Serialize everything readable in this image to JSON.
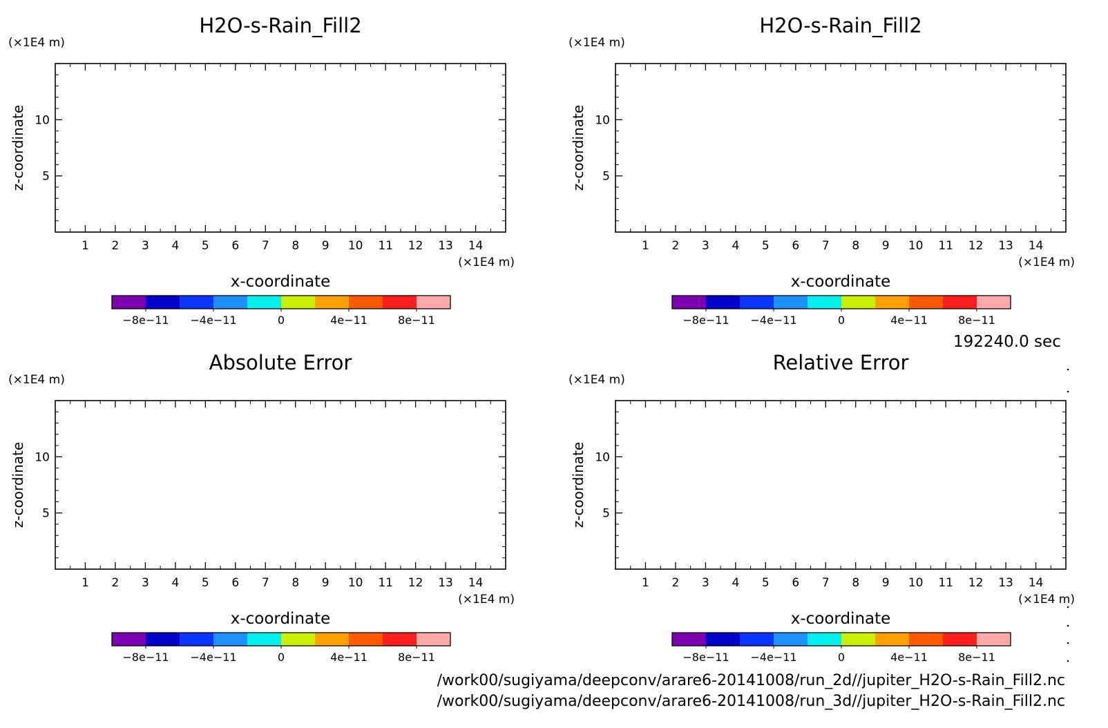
{
  "chart_data": [
    {
      "type": "heatmap",
      "title": "H2O-s-Rain_Fill2",
      "xlabel": "x-coordinate",
      "ylabel": "z-coordinate",
      "x_unit": "(×1E4 m)",
      "y_unit": "(×1E4 m)",
      "xlim": [
        0,
        15
      ],
      "ylim": [
        0,
        15
      ],
      "x_ticks": [
        1,
        2,
        3,
        4,
        5,
        6,
        7,
        8,
        9,
        10,
        11,
        12,
        13,
        14
      ],
      "y_ticks": [
        5,
        10
      ],
      "values": [],
      "colorbar": {
        "vmin": -1e-10,
        "vmax": 1e-10,
        "colors": [
          "#7a00b0",
          "#0000c8",
          "#0a37ff",
          "#1e90ff",
          "#00f0f0",
          "#c8f000",
          "#ffa000",
          "#ff5a00",
          "#ff1e1e",
          "#ffaaaa"
        ],
        "tick_values": [
          -8e-11,
          -4e-11,
          0,
          4e-11,
          8e-11
        ],
        "tick_labels": [
          "−8e−11",
          "−4e−11",
          "0",
          "4e−11",
          "8e−11"
        ]
      }
    },
    {
      "type": "heatmap",
      "title": "H2O-s-Rain_Fill2",
      "xlabel": "x-coordinate",
      "ylabel": "z-coordinate",
      "x_unit": "(×1E4 m)",
      "y_unit": "(×1E4 m)",
      "xlim": [
        0,
        15
      ],
      "ylim": [
        0,
        15
      ],
      "x_ticks": [
        1,
        2,
        3,
        4,
        5,
        6,
        7,
        8,
        9,
        10,
        11,
        12,
        13,
        14
      ],
      "y_ticks": [
        5,
        10
      ],
      "values": [],
      "colorbar": {
        "vmin": -1e-10,
        "vmax": 1e-10,
        "colors": [
          "#7a00b0",
          "#0000c8",
          "#0a37ff",
          "#1e90ff",
          "#00f0f0",
          "#c8f000",
          "#ffa000",
          "#ff5a00",
          "#ff1e1e",
          "#ffaaaa"
        ],
        "tick_values": [
          -8e-11,
          -4e-11,
          0,
          4e-11,
          8e-11
        ],
        "tick_labels": [
          "−8e−11",
          "−4e−11",
          "0",
          "4e−11",
          "8e−11"
        ]
      }
    },
    {
      "type": "heatmap",
      "title": "Absolute Error",
      "xlabel": "x-coordinate",
      "ylabel": "z-coordinate",
      "x_unit": "(×1E4 m)",
      "y_unit": "(×1E4 m)",
      "xlim": [
        0,
        15
      ],
      "ylim": [
        0,
        15
      ],
      "x_ticks": [
        1,
        2,
        3,
        4,
        5,
        6,
        7,
        8,
        9,
        10,
        11,
        12,
        13,
        14
      ],
      "y_ticks": [
        5,
        10
      ],
      "values": [],
      "colorbar": {
        "vmin": -1e-10,
        "vmax": 1e-10,
        "colors": [
          "#7a00b0",
          "#0000c8",
          "#0a37ff",
          "#1e90ff",
          "#00f0f0",
          "#c8f000",
          "#ffa000",
          "#ff5a00",
          "#ff1e1e",
          "#ffaaaa"
        ],
        "tick_values": [
          -8e-11,
          -4e-11,
          0,
          4e-11,
          8e-11
        ],
        "tick_labels": [
          "−8e−11",
          "−4e−11",
          "0",
          "4e−11",
          "8e−11"
        ]
      }
    },
    {
      "type": "heatmap",
      "title": "Relative Error",
      "xlabel": "x-coordinate",
      "ylabel": "z-coordinate",
      "x_unit": "(×1E4 m)",
      "y_unit": "(×1E4 m)",
      "xlim": [
        0,
        15
      ],
      "ylim": [
        0,
        15
      ],
      "x_ticks": [
        1,
        2,
        3,
        4,
        5,
        6,
        7,
        8,
        9,
        10,
        11,
        12,
        13,
        14
      ],
      "y_ticks": [
        5,
        10
      ],
      "values": [],
      "colorbar": {
        "vmin": -1e-10,
        "vmax": 1e-10,
        "colors": [
          "#7a00b0",
          "#0000c8",
          "#0a37ff",
          "#1e90ff",
          "#00f0f0",
          "#c8f000",
          "#ffa000",
          "#ff5a00",
          "#ff1e1e",
          "#ffaaaa"
        ],
        "tick_values": [
          -8e-11,
          -4e-11,
          0,
          4e-11,
          8e-11
        ],
        "tick_labels": [
          "−8e−11",
          "−4e−11",
          "0",
          "4e−11",
          "8e−11"
        ]
      }
    }
  ],
  "time_label": "192240.0 sec",
  "files": [
    "/work00/sugiyama/deepconv/arare6-20141008/run_2d//jupiter_H2O-s-Rain_Fill2.nc",
    "/work00/sugiyama/deepconv/arare6-20141008/run_3d//jupiter_H2O-s-Rain_Fill2.nc"
  ]
}
